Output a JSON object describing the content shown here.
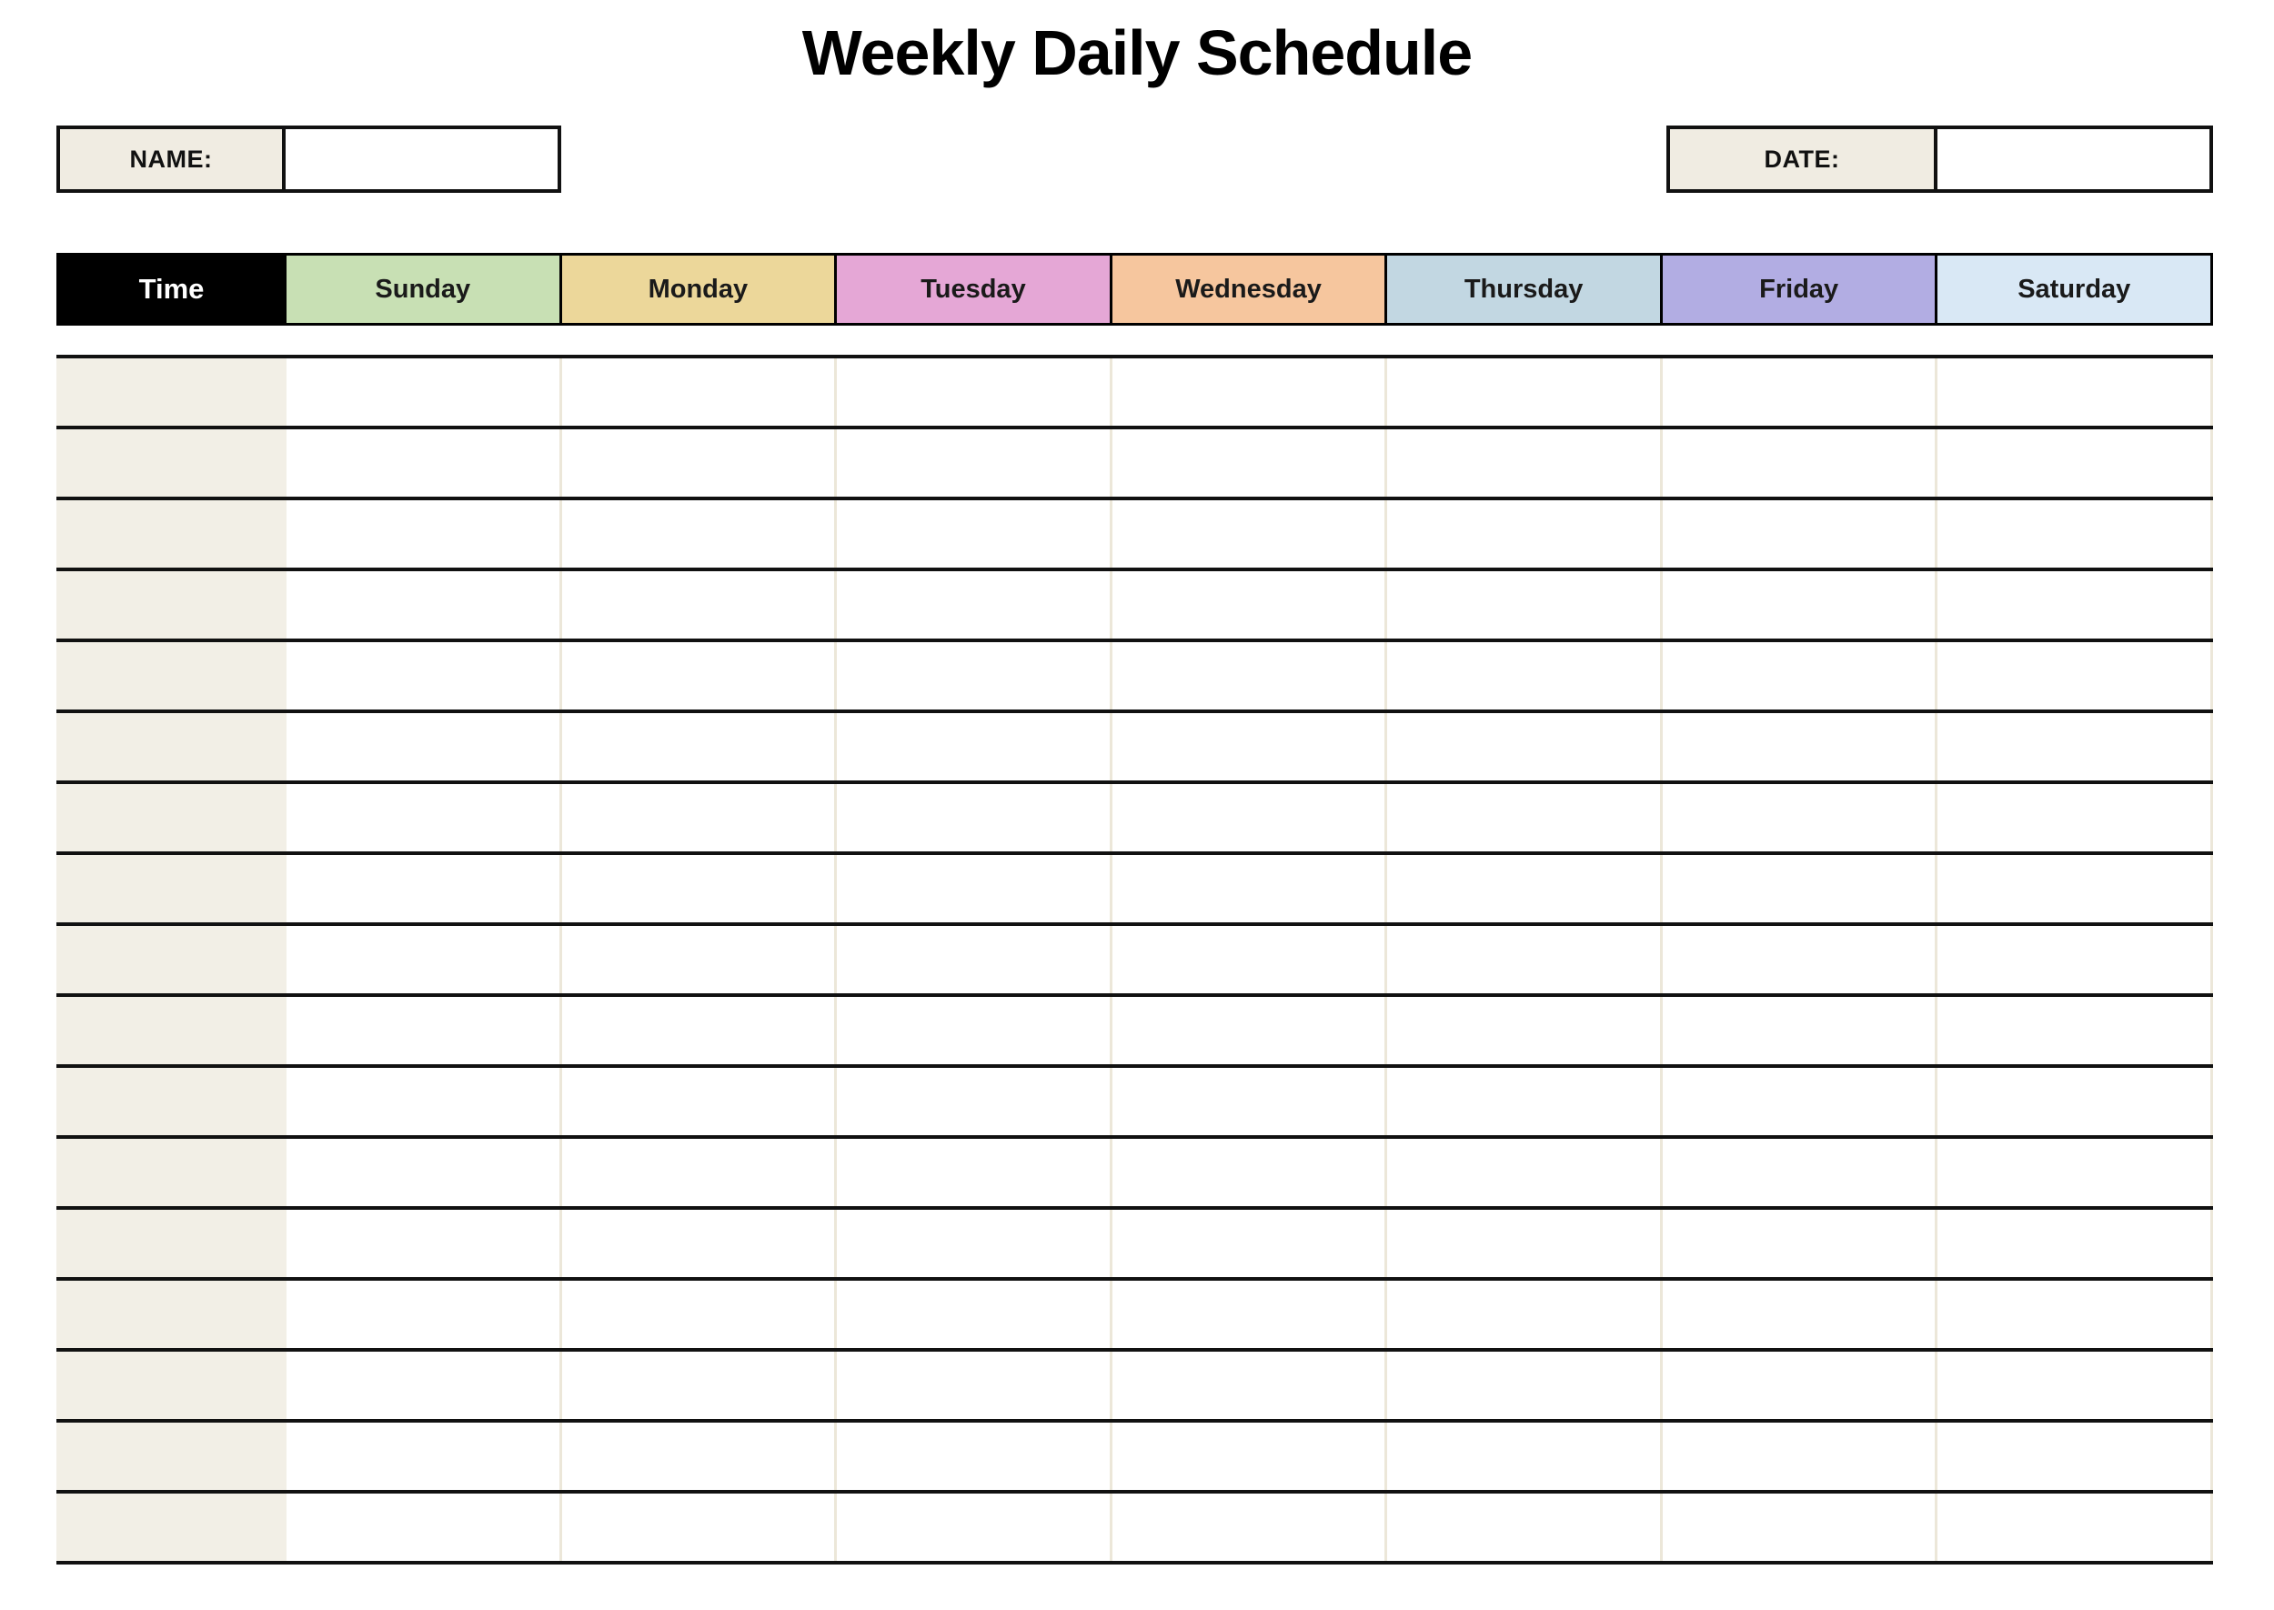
{
  "title": "Weekly Daily Schedule",
  "name_field": {
    "label": "NAME:",
    "value": ""
  },
  "date_field": {
    "label": "DATE:",
    "value": ""
  },
  "schedule_table": {
    "time_header": "Time",
    "day_headers": [
      "Sunday",
      "Monday",
      "Tuesday",
      "Wednesday",
      "Thursday",
      "Friday",
      "Saturday"
    ],
    "day_header_colors": [
      "#c8e0b4",
      "#ecd79a",
      "#e5a7d6",
      "#f6c69e",
      "#c2d7e2",
      "#b2ade3",
      "#d9e8f5"
    ],
    "time_header_bg": "#000000",
    "time_header_text_color": "#ffffff",
    "time_column_bg": "#f2efe6",
    "row_count": 17,
    "rows": [
      {
        "time": "",
        "entries": [
          "",
          "",
          "",
          "",
          "",
          "",
          ""
        ]
      },
      {
        "time": "",
        "entries": [
          "",
          "",
          "",
          "",
          "",
          "",
          ""
        ]
      },
      {
        "time": "",
        "entries": [
          "",
          "",
          "",
          "",
          "",
          "",
          ""
        ]
      },
      {
        "time": "",
        "entries": [
          "",
          "",
          "",
          "",
          "",
          "",
          ""
        ]
      },
      {
        "time": "",
        "entries": [
          "",
          "",
          "",
          "",
          "",
          "",
          ""
        ]
      },
      {
        "time": "",
        "entries": [
          "",
          "",
          "",
          "",
          "",
          "",
          ""
        ]
      },
      {
        "time": "",
        "entries": [
          "",
          "",
          "",
          "",
          "",
          "",
          ""
        ]
      },
      {
        "time": "",
        "entries": [
          "",
          "",
          "",
          "",
          "",
          "",
          ""
        ]
      },
      {
        "time": "",
        "entries": [
          "",
          "",
          "",
          "",
          "",
          "",
          ""
        ]
      },
      {
        "time": "",
        "entries": [
          "",
          "",
          "",
          "",
          "",
          "",
          ""
        ]
      },
      {
        "time": "",
        "entries": [
          "",
          "",
          "",
          "",
          "",
          "",
          ""
        ]
      },
      {
        "time": "",
        "entries": [
          "",
          "",
          "",
          "",
          "",
          "",
          ""
        ]
      },
      {
        "time": "",
        "entries": [
          "",
          "",
          "",
          "",
          "",
          "",
          ""
        ]
      },
      {
        "time": "",
        "entries": [
          "",
          "",
          "",
          "",
          "",
          "",
          ""
        ]
      },
      {
        "time": "",
        "entries": [
          "",
          "",
          "",
          "",
          "",
          "",
          ""
        ]
      },
      {
        "time": "",
        "entries": [
          "",
          "",
          "",
          "",
          "",
          "",
          ""
        ]
      },
      {
        "time": "",
        "entries": [
          "",
          "",
          "",
          "",
          "",
          "",
          ""
        ]
      }
    ]
  },
  "colors": {
    "grid_line": "#111111",
    "faint_separator": "#ece7d9",
    "label_cell_bg": "#f0ece2",
    "header_border": "#000000"
  }
}
